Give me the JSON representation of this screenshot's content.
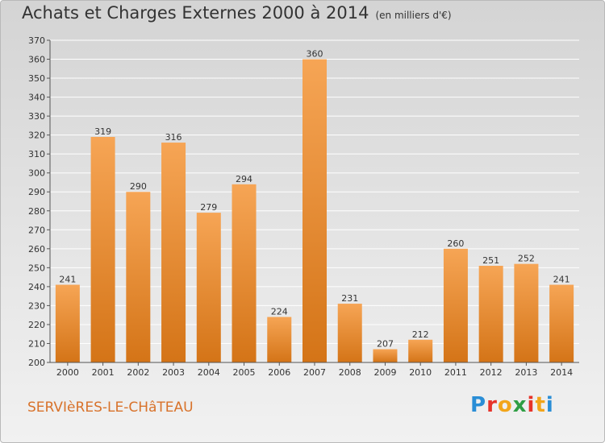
{
  "header": {
    "title": "Achats et Charges Externes 2000 à 2014",
    "subtitle": "(en milliers d'€)"
  },
  "footer": {
    "location": "SERVIèRES-LE-CHâTEAU",
    "logo_letters": [
      "P",
      "r",
      "o",
      "x",
      "i",
      "t",
      "i"
    ],
    "logo_colors": [
      "#2a8ed6",
      "#e6332a",
      "#f2a51a",
      "#2f9e44",
      "#e6332a",
      "#f2a51a",
      "#2a8ed6"
    ]
  },
  "colors": {
    "bar_light": "#f6a555",
    "bar_dark": "#d47417",
    "axis": "#555555",
    "grid": "#ffffff"
  },
  "chart_data": {
    "type": "bar",
    "title": "Achats et Charges Externes 2000 à 2014",
    "subtitle": "(en milliers d'€)",
    "xlabel": "",
    "ylabel": "",
    "categories": [
      "2000",
      "2001",
      "2002",
      "2003",
      "2004",
      "2005",
      "2006",
      "2007",
      "2008",
      "2009",
      "2010",
      "2011",
      "2012",
      "2013",
      "2014"
    ],
    "values": [
      241,
      319,
      290,
      316,
      279,
      294,
      224,
      360,
      231,
      207,
      212,
      260,
      251,
      252,
      241
    ],
    "ylim": [
      200,
      370
    ],
    "yticks": [
      200,
      210,
      220,
      230,
      240,
      250,
      260,
      270,
      280,
      290,
      300,
      310,
      320,
      330,
      340,
      350,
      360,
      370
    ],
    "grid": true
  }
}
